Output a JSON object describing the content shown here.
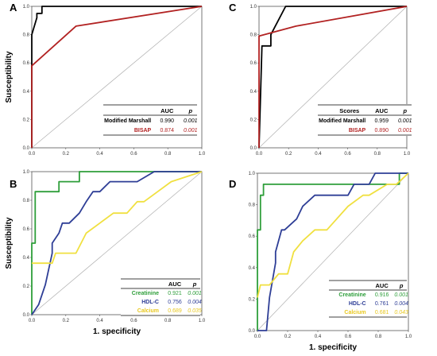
{
  "chart_data": [
    {
      "panel_label": "A",
      "type": "line",
      "xlabel": "",
      "ylabel": "Susceptibility",
      "xlim": [
        0,
        1
      ],
      "ylim": [
        0,
        1
      ],
      "ticks": [
        "0.0",
        "0.2",
        "0.4",
        "0.6",
        "0.8",
        "1.0"
      ],
      "series": [
        {
          "name": "Modified Marshall",
          "color": "#000000",
          "x": [
            0,
            0,
            0.03,
            0.03,
            0.06,
            0.06,
            1.0
          ],
          "y": [
            0,
            0.8,
            0.92,
            0.95,
            0.95,
            1.0,
            1.0
          ]
        },
        {
          "name": "BISAP",
          "color": "#b22222",
          "x": [
            0,
            0,
            0.26,
            1.0
          ],
          "y": [
            0,
            0.58,
            0.86,
            1.0
          ]
        }
      ],
      "table_headers": [
        "",
        "AUC",
        "p"
      ],
      "table_rows": [
        {
          "label": "Modified Marshall",
          "auc": "0.990",
          "p": "0.001",
          "color": "#000000"
        },
        {
          "label": "BISAP",
          "auc": "0.874",
          "p": "0.001",
          "color": "#b22222"
        }
      ]
    },
    {
      "panel_label": "C",
      "type": "line",
      "xlabel": "",
      "ylabel": "",
      "xlim": [
        0,
        1
      ],
      "ylim": [
        0,
        1
      ],
      "ticks": [
        "0.0",
        "0.2",
        "0.4",
        "0.6",
        "0.8",
        "1.0"
      ],
      "series": [
        {
          "name": "Modified Marshall",
          "color": "#000000",
          "x": [
            0,
            0.02,
            0.04,
            0.08,
            0.08,
            0.18,
            1.0
          ],
          "y": [
            0,
            0.72,
            0.72,
            0.72,
            0.8,
            1.0,
            1.0
          ]
        },
        {
          "name": "BISAP",
          "color": "#b22222",
          "x": [
            0,
            0,
            0.25,
            1.0
          ],
          "y": [
            0,
            0.79,
            0.86,
            1.0
          ]
        }
      ],
      "table_headers": [
        "Scores",
        "AUC",
        "p"
      ],
      "table_rows": [
        {
          "label": "Modified Marshall",
          "auc": "0.959",
          "p": "0.001",
          "color": "#000000"
        },
        {
          "label": "BISAP",
          "auc": "0.890",
          "p": "0.001",
          "color": "#b22222"
        }
      ]
    },
    {
      "panel_label": "B",
      "type": "line",
      "xlabel": "1. specificity",
      "ylabel": "Susceptibility",
      "xlim": [
        0,
        1
      ],
      "ylim": [
        0,
        1
      ],
      "ticks": [
        "0.0",
        "0.2",
        "0.4",
        "0.6",
        "0.8",
        "1.0"
      ],
      "series": [
        {
          "name": "Creatinine",
          "color": "#2e9e3a",
          "x": [
            0,
            0,
            0.02,
            0.02,
            0.16,
            0.16,
            0.28,
            0.28,
            0.85,
            0.85,
            1.0
          ],
          "y": [
            0,
            0.5,
            0.5,
            0.86,
            0.86,
            0.93,
            0.93,
            1.0,
            1.0,
            1.0,
            1.0
          ]
        },
        {
          "name": "HDL-C",
          "color": "#2e3e96",
          "x": [
            0,
            0.04,
            0.08,
            0.12,
            0.12,
            0.16,
            0.18,
            0.22,
            0.28,
            0.32,
            0.36,
            0.4,
            0.46,
            0.52,
            0.62,
            0.72,
            0.8,
            1.0
          ],
          "y": [
            0,
            0.07,
            0.21,
            0.43,
            0.5,
            0.57,
            0.64,
            0.64,
            0.71,
            0.79,
            0.86,
            0.86,
            0.93,
            0.93,
            0.93,
            1.0,
            1.0,
            1.0
          ]
        },
        {
          "name": "Calcium",
          "color": "#f0e040",
          "x": [
            0,
            0.12,
            0.14,
            0.26,
            0.32,
            0.4,
            0.48,
            0.56,
            0.62,
            0.66,
            0.74,
            0.82,
            1.0
          ],
          "y": [
            0.36,
            0.36,
            0.43,
            0.43,
            0.57,
            0.64,
            0.71,
            0.71,
            0.79,
            0.79,
            0.86,
            0.93,
            1.0
          ]
        }
      ],
      "table_headers": [
        "",
        "AUC",
        "p"
      ],
      "table_rows": [
        {
          "label": "Creatinine",
          "auc": "0.921",
          "p": "0.001",
          "color": "#2e9e3a"
        },
        {
          "label": "HDL-C",
          "auc": "0.756",
          "p": "0.004",
          "color": "#2e3e96"
        },
        {
          "label": "Calcium",
          "auc": "0.689",
          "p": "0.035",
          "color": "#e8c820"
        }
      ]
    },
    {
      "panel_label": "D",
      "type": "line",
      "xlabel": "1. specificity",
      "ylabel": "",
      "xlim": [
        0,
        1
      ],
      "ylim": [
        0,
        1
      ],
      "ticks": [
        "0.0",
        "0.2",
        "0.4",
        "0.6",
        "0.8",
        "1.0"
      ],
      "series": [
        {
          "name": "Creatinine",
          "color": "#2e9e3a",
          "x": [
            0,
            0,
            0.02,
            0.02,
            0.04,
            0.04,
            0.94,
            0.94,
            1.0
          ],
          "y": [
            0,
            0.64,
            0.64,
            0.86,
            0.86,
            0.93,
            0.93,
            1.0,
            1.0
          ]
        },
        {
          "name": "HDL-C",
          "color": "#2e3e96",
          "x": [
            0,
            0.06,
            0.08,
            0.12,
            0.12,
            0.14,
            0.16,
            0.18,
            0.26,
            0.3,
            0.38,
            0.48,
            0.6,
            0.64,
            0.74,
            0.78,
            0.94,
            1.0
          ],
          "y": [
            0,
            0.0,
            0.21,
            0.43,
            0.5,
            0.57,
            0.64,
            0.64,
            0.71,
            0.79,
            0.86,
            0.86,
            0.86,
            0.93,
            0.93,
            1.0,
            1.0,
            1.0
          ]
        },
        {
          "name": "Calcium",
          "color": "#f0e040",
          "x": [
            0,
            0.02,
            0.08,
            0.14,
            0.2,
            0.24,
            0.3,
            0.38,
            0.46,
            0.6,
            0.7,
            0.74,
            0.86,
            0.92,
            1.0
          ],
          "y": [
            0.21,
            0.29,
            0.29,
            0.36,
            0.36,
            0.5,
            0.57,
            0.64,
            0.64,
            0.79,
            0.86,
            0.86,
            0.93,
            0.93,
            1.0
          ]
        }
      ],
      "table_headers": [
        "",
        "AUC",
        "p"
      ],
      "table_rows": [
        {
          "label": "Creatinine",
          "auc": "0.916",
          "p": "0.001",
          "color": "#2e9e3a"
        },
        {
          "label": "HDL-C",
          "auc": "0.761",
          "p": "0.004",
          "color": "#2e3e96"
        },
        {
          "label": "Calcium",
          "auc": "0.681",
          "p": "0.043",
          "color": "#e8c820"
        }
      ]
    }
  ]
}
